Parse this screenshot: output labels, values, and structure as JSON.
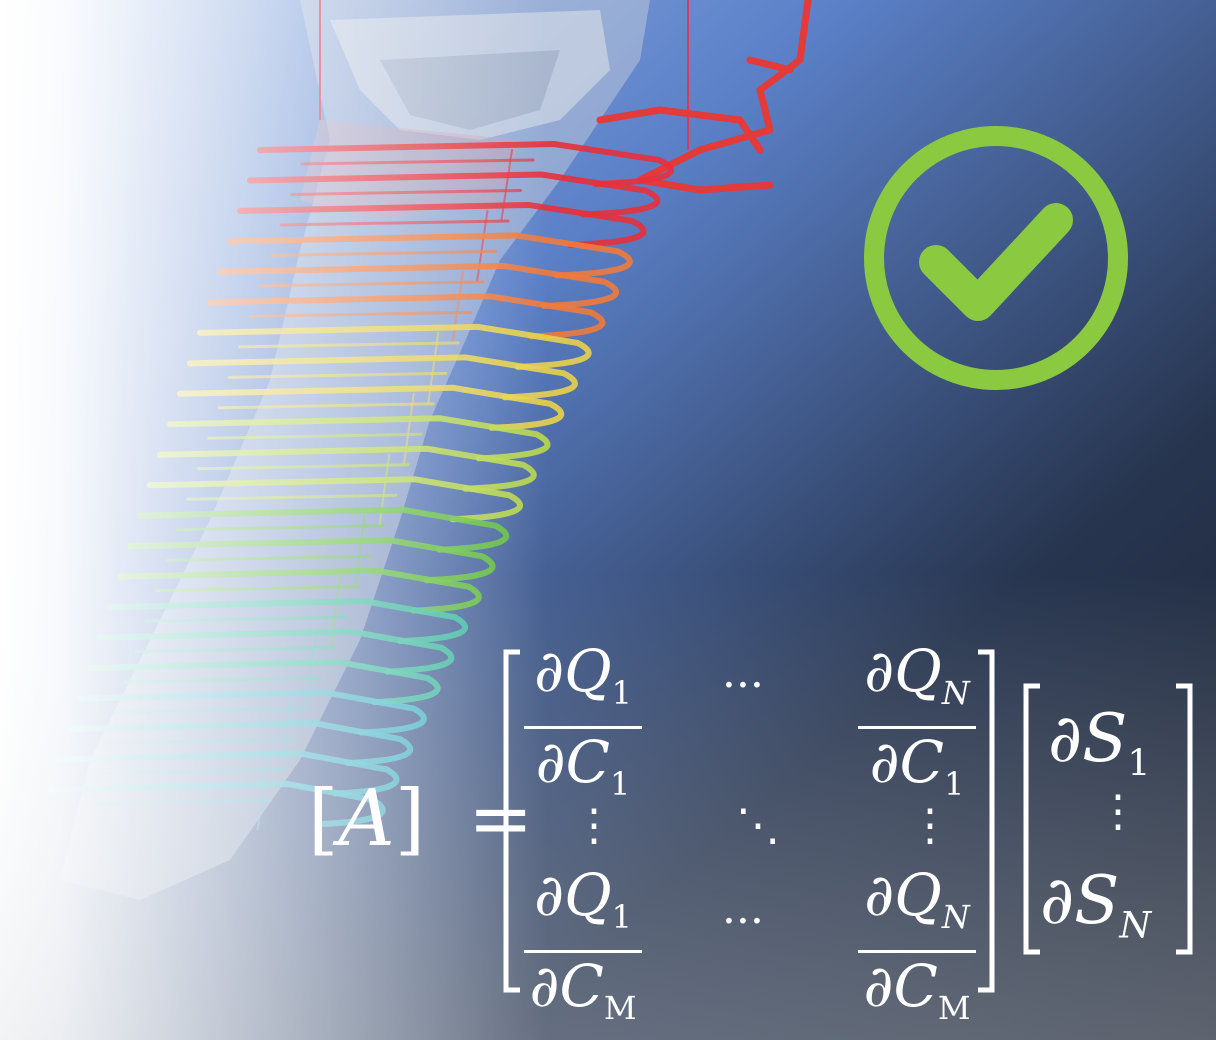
{
  "scene": {
    "gradient_colors": [
      "#ffffff",
      "#5b80c8",
      "#1b2230"
    ],
    "mesh_color": "#c9d0dc",
    "level_colors": [
      "#e8303a",
      "#f07a3c",
      "#e8d24a",
      "#b9d84a",
      "#66c23c",
      "#3cc0a0",
      "#40b8c8"
    ]
  },
  "check_badge": {
    "icon": "check-circle-icon",
    "color": "#8ac940"
  },
  "equation": {
    "lhs_symbol": "A",
    "equals": "=",
    "partial": "∂",
    "Q": "Q",
    "C": "C",
    "S": "S",
    "sub_1": "1",
    "sub_N": "N",
    "sub_M": "M",
    "hdots": "···",
    "vdots": "⋮",
    "ddots": "⋱"
  }
}
